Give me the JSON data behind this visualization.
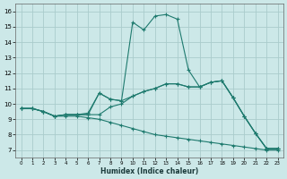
{
  "xlabel": "Humidex (Indice chaleur)",
  "xlim": [
    -0.5,
    23.5
  ],
  "ylim": [
    6.5,
    16.5
  ],
  "xticks": [
    0,
    1,
    2,
    3,
    4,
    5,
    6,
    7,
    8,
    9,
    10,
    11,
    12,
    13,
    14,
    15,
    16,
    17,
    18,
    19,
    20,
    21,
    22,
    23
  ],
  "yticks": [
    7,
    8,
    9,
    10,
    11,
    12,
    13,
    14,
    15,
    16
  ],
  "bg_color": "#cce8e8",
  "grid_color": "#aacccc",
  "line_color": "#1e7a6e",
  "lines": [
    {
      "x": [
        0,
        1,
        2,
        3,
        4,
        5,
        6,
        7,
        8,
        9,
        10,
        11,
        12,
        13,
        14,
        15,
        16,
        17,
        18,
        19,
        20,
        21,
        22,
        23
      ],
      "y": [
        9.7,
        9.7,
        9.5,
        9.2,
        9.3,
        9.3,
        9.4,
        10.7,
        10.3,
        10.2,
        15.3,
        14.8,
        15.7,
        15.8,
        15.5,
        12.2,
        11.1,
        11.4,
        11.5,
        10.4,
        9.2,
        8.1,
        7.1,
        7.1
      ]
    },
    {
      "x": [
        0,
        1,
        2,
        3,
        4,
        5,
        6,
        7,
        8,
        9,
        10,
        11,
        12,
        13,
        14,
        15,
        16,
        17,
        18,
        19,
        20,
        21,
        22,
        23
      ],
      "y": [
        9.7,
        9.7,
        9.5,
        9.2,
        9.3,
        9.3,
        9.3,
        9.3,
        9.8,
        10.0,
        10.5,
        10.8,
        11.0,
        11.3,
        11.3,
        11.1,
        11.1,
        11.4,
        11.5,
        10.4,
        9.2,
        8.1,
        7.1,
        7.1
      ]
    },
    {
      "x": [
        0,
        1,
        2,
        3,
        4,
        5,
        6,
        7,
        8,
        9,
        10,
        11,
        12,
        13,
        14,
        15,
        16,
        17,
        18,
        19,
        20,
        21,
        22,
        23
      ],
      "y": [
        9.7,
        9.7,
        9.5,
        9.2,
        9.3,
        9.3,
        9.3,
        10.7,
        10.3,
        10.2,
        10.5,
        10.8,
        11.0,
        11.3,
        11.3,
        11.1,
        11.1,
        11.4,
        11.5,
        10.4,
        9.2,
        8.1,
        7.1,
        7.1
      ]
    },
    {
      "x": [
        0,
        1,
        2,
        3,
        4,
        5,
        6,
        7,
        8,
        9,
        10,
        11,
        12,
        13,
        14,
        15,
        16,
        17,
        18,
        19,
        20,
        21,
        22,
        23
      ],
      "y": [
        9.7,
        9.7,
        9.5,
        9.2,
        9.2,
        9.2,
        9.1,
        9.0,
        8.8,
        8.6,
        8.4,
        8.2,
        8.0,
        7.9,
        7.8,
        7.7,
        7.6,
        7.5,
        7.4,
        7.3,
        7.2,
        7.1,
        7.0,
        7.0
      ]
    }
  ]
}
